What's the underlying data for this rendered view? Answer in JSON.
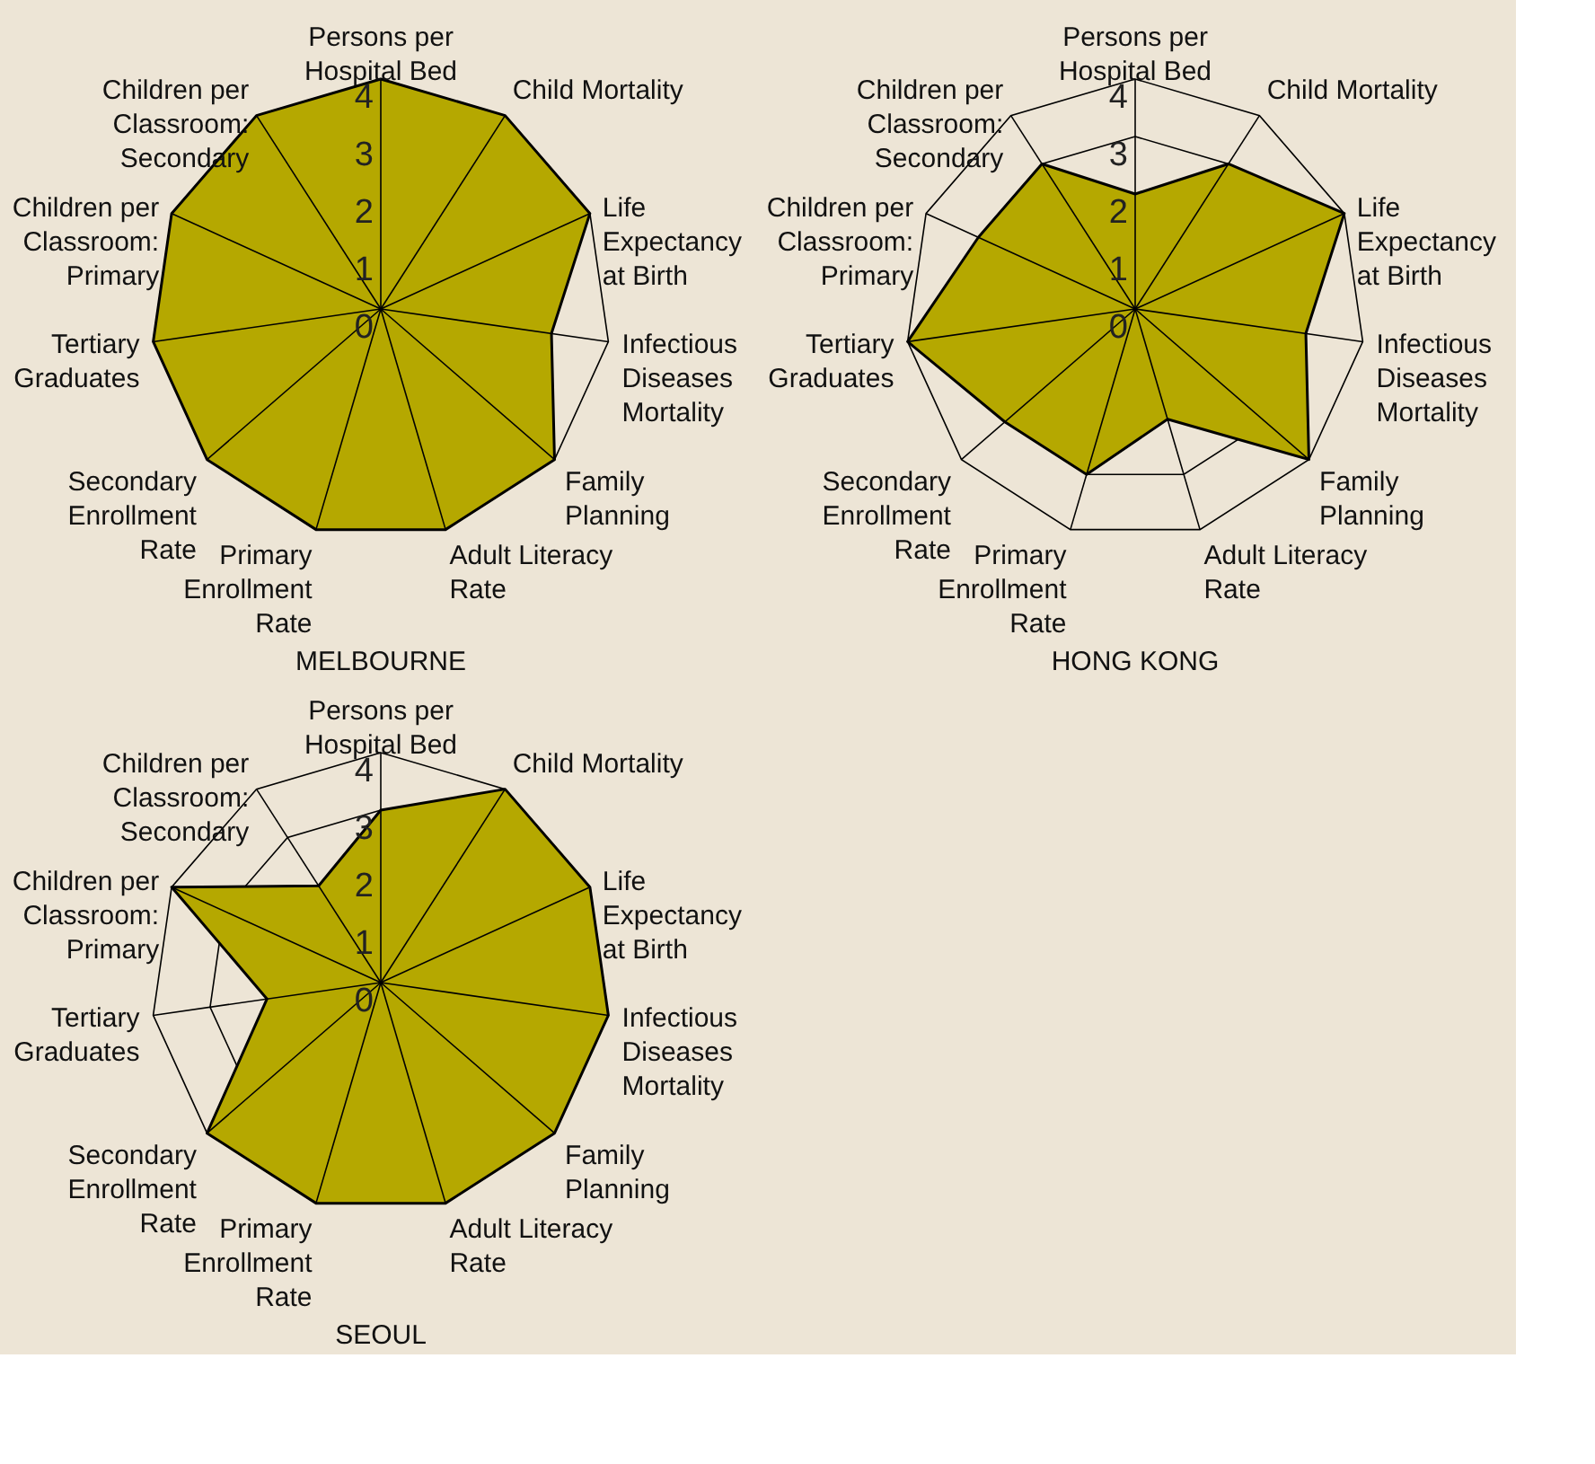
{
  "chart_data": [
    {
      "type": "radar",
      "title": "MELBOURNE",
      "categories": [
        "Persons per\nHospital Bed",
        "Child Mortality",
        "Life\nExpectancy\nat Birth",
        "Infectious\nDiseases\nMortality",
        "Family\nPlanning",
        "Adult Literacy\nRate",
        "Primary\nEnrollment\nRate",
        "Secondary\nEnrollment\nRate",
        "Tertiary\nGraduates",
        "Children per\nClassroom:\nPrimary",
        "Children per\nClassroom:\nSecondary"
      ],
      "ylim": [
        0,
        4
      ],
      "yticks": [
        0,
        1,
        2,
        3,
        4
      ],
      "grid": true,
      "series": [
        {
          "color": "#b5a800",
          "values": [
            4,
            4,
            4,
            3,
            4,
            4,
            4,
            4,
            4,
            4,
            4
          ]
        }
      ]
    },
    {
      "type": "radar",
      "title": "HONG KONG",
      "categories": [
        "Persons per\nHospital Bed",
        "Child Mortality",
        "Life\nExpectancy\nat Birth",
        "Infectious\nDiseases\nMortality",
        "Family\nPlanning",
        "Adult Literacy\nRate",
        "Primary\nEnrollment\nRate",
        "Secondary\nEnrollment\nRate",
        "Tertiary\nGraduates",
        "Children per\nClassroom:\nPrimary",
        "Children per\nClassroom:\nSecondary"
      ],
      "ylim": [
        0,
        4
      ],
      "yticks": [
        0,
        1,
        2,
        3,
        4
      ],
      "grid": true,
      "series": [
        {
          "color": "#b5a800",
          "values": [
            2,
            3,
            4,
            3,
            4,
            2,
            3,
            3,
            4,
            3,
            3
          ]
        }
      ]
    },
    {
      "type": "radar",
      "title": "SEOUL",
      "categories": [
        "Persons per\nHospital Bed",
        "Child Mortality",
        "Life\nExpectancy\nat Birth",
        "Infectious\nDiseases\nMortality",
        "Family\nPlanning",
        "Adult Literacy\nRate",
        "Primary\nEnrollment\nRate",
        "Secondary\nEnrollment\nRate",
        "Tertiary\nGraduates",
        "Children per\nClassroom:\nPrimary",
        "Children per\nClassroom:\nSecondary"
      ],
      "ylim": [
        0,
        4
      ],
      "yticks": [
        0,
        1,
        2,
        3,
        4
      ],
      "grid": true,
      "series": [
        {
          "color": "#b5a800",
          "values": [
            3,
            4,
            4,
            4,
            4,
            4,
            4,
            4,
            2,
            4,
            2
          ]
        }
      ]
    }
  ]
}
